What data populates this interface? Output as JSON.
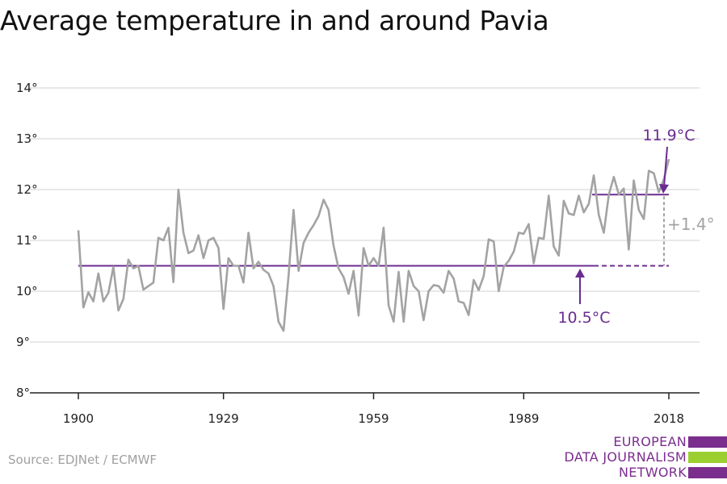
{
  "title": "Average temperature in and around Pavia",
  "source": "Source: EDJNet / ECMWF",
  "logo": {
    "lines": [
      "EUROPEAN",
      "DATA JOURNALISM",
      "NETWORK"
    ],
    "bar_colors": [
      "#7b2d8e",
      "#9bcf2f",
      "#7b2d8e"
    ]
  },
  "colors": {
    "series": "#a3a3a3",
    "reference": "#6a2c91",
    "grid": "#d9d9d9",
    "axis": "#222222",
    "delta": "#a3a3a3"
  },
  "chart_data": {
    "type": "line",
    "title": "Average temperature in and around Pavia",
    "xlabel": "",
    "ylabel": "",
    "xlim": [
      1900,
      2018
    ],
    "ylim": [
      8,
      14
    ],
    "x_ticks": [
      1900,
      1929,
      1959,
      1989,
      2018
    ],
    "y_ticks": [
      8,
      9,
      10,
      11,
      12,
      13,
      14
    ],
    "y_tick_suffix": "°",
    "grid": true,
    "x": [
      1900,
      1901,
      1902,
      1903,
      1904,
      1905,
      1906,
      1907,
      1908,
      1909,
      1910,
      1911,
      1912,
      1913,
      1914,
      1915,
      1916,
      1917,
      1918,
      1919,
      1920,
      1921,
      1922,
      1923,
      1924,
      1925,
      1926,
      1927,
      1928,
      1929,
      1930,
      1931,
      1932,
      1933,
      1934,
      1935,
      1936,
      1937,
      1938,
      1939,
      1940,
      1941,
      1942,
      1943,
      1944,
      1945,
      1946,
      1947,
      1948,
      1949,
      1950,
      1951,
      1952,
      1953,
      1954,
      1955,
      1956,
      1957,
      1958,
      1959,
      1960,
      1961,
      1962,
      1963,
      1964,
      1965,
      1966,
      1967,
      1968,
      1969,
      1970,
      1971,
      1972,
      1973,
      1974,
      1975,
      1976,
      1977,
      1978,
      1979,
      1980,
      1981,
      1982,
      1983,
      1984,
      1985,
      1986,
      1987,
      1988,
      1989,
      1990,
      1991,
      1992,
      1993,
      1994,
      1995,
      1996,
      1997,
      1998,
      1999,
      2000,
      2001,
      2002,
      2003,
      2004,
      2005,
      2006,
      2007,
      2008,
      2009,
      2010,
      2011,
      2012,
      2013,
      2014,
      2015,
      2016,
      2017,
      2018
    ],
    "values": [
      11.2,
      9.68,
      9.98,
      9.8,
      10.35,
      9.8,
      9.97,
      10.48,
      9.62,
      9.85,
      10.62,
      10.45,
      10.5,
      10.03,
      10.1,
      10.17,
      11.05,
      11.0,
      11.25,
      10.18,
      12.0,
      11.15,
      10.75,
      10.8,
      11.1,
      10.65,
      11.0,
      11.05,
      10.85,
      9.65,
      10.65,
      10.5,
      10.5,
      10.17,
      11.15,
      10.45,
      10.58,
      10.42,
      10.35,
      10.1,
      9.4,
      9.22,
      10.3,
      11.6,
      10.4,
      10.95,
      11.15,
      11.3,
      11.48,
      11.8,
      11.6,
      10.9,
      10.45,
      10.28,
      9.95,
      10.4,
      9.52,
      10.85,
      10.5,
      10.65,
      10.5,
      11.25,
      9.72,
      9.4,
      10.38,
      9.4,
      10.4,
      10.1,
      10.0,
      9.43,
      10.0,
      10.12,
      10.1,
      9.97,
      10.4,
      10.25,
      9.8,
      9.77,
      9.53,
      10.22,
      10.02,
      10.3,
      11.02,
      10.98,
      10.0,
      10.48,
      10.6,
      10.78,
      11.15,
      11.13,
      11.32,
      10.55,
      11.05,
      11.03,
      11.88,
      10.88,
      10.7,
      11.78,
      11.53,
      11.5,
      11.88,
      11.55,
      11.72,
      12.28,
      11.5,
      11.15,
      11.9,
      12.25,
      11.9,
      12.02,
      10.82,
      12.18,
      11.6,
      11.42,
      12.37,
      12.32,
      11.95,
      12.2,
      12.6
    ],
    "series": [
      {
        "name": "",
        "values_ref": "values"
      }
    ],
    "reference_lines": [
      {
        "label": "10.5°C",
        "value": 10.5,
        "x_start": 1900,
        "x_end": 2003,
        "dashed_to": 2018
      },
      {
        "label": "11.9°C",
        "value": 11.9,
        "x_start": 2003,
        "x_end": 2018
      }
    ],
    "annotations": [
      {
        "text": "11.9°C",
        "color": "#6a2c91"
      },
      {
        "text": "10.5°C",
        "color": "#6a2c91"
      },
      {
        "text": "+1.4°",
        "color": "#a3a3a3"
      }
    ]
  }
}
